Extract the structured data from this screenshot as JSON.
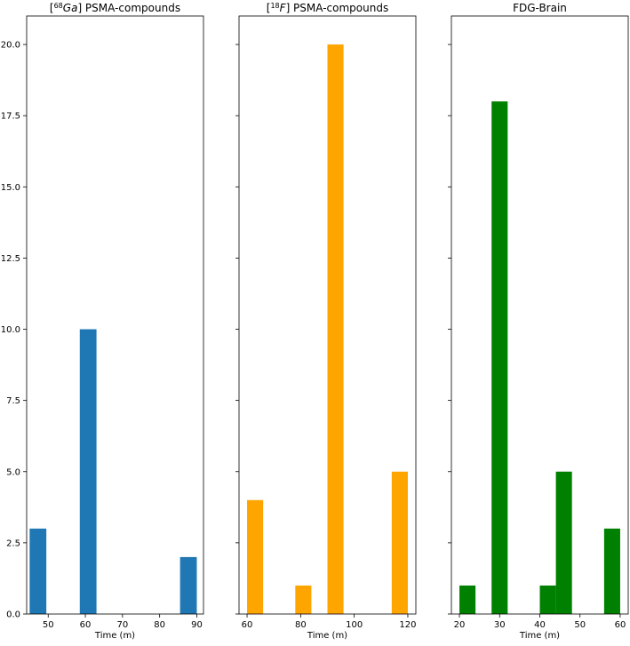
{
  "chart_data": [
    {
      "type": "bar",
      "title": "[68Ga] PSMA-compounds",
      "title_parts": {
        "prefix": "[",
        "superscript": "68",
        "italic": "Ga",
        "suffix": "] PSMA-compounds"
      },
      "xlabel": "Time (m)",
      "ylabel": "",
      "xlim": [
        44.2,
        91.8
      ],
      "ylim": [
        0,
        21
      ],
      "color": "#1f77b4",
      "bin_width": 4.5,
      "bins": [
        {
          "x": 45.0,
          "value": 3
        },
        {
          "x": 49.5,
          "value": 0
        },
        {
          "x": 54.0,
          "value": 0
        },
        {
          "x": 58.5,
          "value": 10
        },
        {
          "x": 63.0,
          "value": 0
        },
        {
          "x": 67.5,
          "value": 0
        },
        {
          "x": 72.0,
          "value": 0
        },
        {
          "x": 76.5,
          "value": 0
        },
        {
          "x": 81.0,
          "value": 0
        },
        {
          "x": 85.5,
          "value": 2
        }
      ],
      "x_ticks": [
        50,
        60,
        70,
        80,
        90
      ],
      "y_ticks": [
        "0.0",
        "2.5",
        "5.0",
        "7.5",
        "10.0",
        "12.5",
        "15.0",
        "17.5",
        "20.0"
      ],
      "show_y_labels": true
    },
    {
      "type": "bar",
      "title": "[18F] PSMA-compounds",
      "title_parts": {
        "prefix": "[",
        "superscript": "18",
        "italic": "F",
        "suffix": "] PSMA-compounds"
      },
      "xlabel": "Time (m)",
      "ylabel": "",
      "xlim": [
        57.0,
        123.0
      ],
      "ylim": [
        0,
        21
      ],
      "color": "#ffa500",
      "bin_width": 6.0,
      "bins": [
        {
          "x": 60.0,
          "value": 4
        },
        {
          "x": 66.0,
          "value": 0
        },
        {
          "x": 72.0,
          "value": 0
        },
        {
          "x": 78.0,
          "value": 1
        },
        {
          "x": 84.0,
          "value": 0
        },
        {
          "x": 90.0,
          "value": 20
        },
        {
          "x": 96.0,
          "value": 0
        },
        {
          "x": 102.0,
          "value": 0
        },
        {
          "x": 108.0,
          "value": 0
        },
        {
          "x": 114.0,
          "value": 5
        }
      ],
      "x_ticks": [
        60,
        80,
        100,
        120
      ],
      "y_ticks": [
        "0.0",
        "2.5",
        "5.0",
        "7.5",
        "10.0",
        "12.5",
        "15.0",
        "17.5",
        "20.0"
      ],
      "show_y_labels": false
    },
    {
      "type": "bar",
      "title": "FDG-Brain",
      "title_parts": null,
      "xlabel": "Time (m)",
      "ylabel": "",
      "xlim": [
        18.0,
        62.0
      ],
      "ylim": [
        0,
        21
      ],
      "color": "#008000",
      "bin_width": 4.0,
      "bins": [
        {
          "x": 20.0,
          "value": 1
        },
        {
          "x": 24.0,
          "value": 0
        },
        {
          "x": 28.0,
          "value": 18
        },
        {
          "x": 32.0,
          "value": 0
        },
        {
          "x": 36.0,
          "value": 0
        },
        {
          "x": 40.0,
          "value": 1
        },
        {
          "x": 44.0,
          "value": 5
        },
        {
          "x": 48.0,
          "value": 0
        },
        {
          "x": 52.0,
          "value": 0
        },
        {
          "x": 56.0,
          "value": 3
        }
      ],
      "x_ticks": [
        20,
        30,
        40,
        50,
        60
      ],
      "y_ticks": [
        "0.0",
        "2.5",
        "5.0",
        "7.5",
        "10.0",
        "12.5",
        "15.0",
        "17.5",
        "20.0"
      ],
      "show_y_labels": false
    }
  ]
}
